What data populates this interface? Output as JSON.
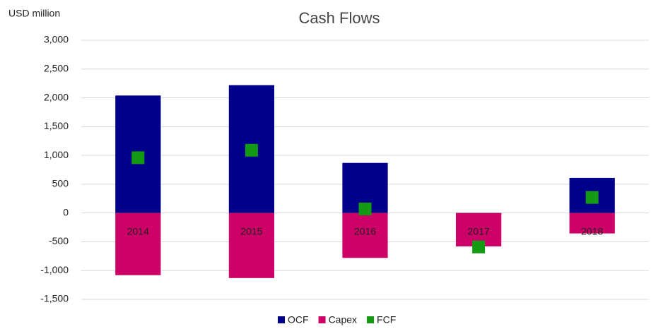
{
  "chart_data": {
    "type": "bar",
    "title": "Cash Flows",
    "y_label": "USD million",
    "categories": [
      "2014",
      "2015",
      "2016",
      "2017",
      "2018"
    ],
    "series": [
      {
        "name": "OCF",
        "color": "#00008b",
        "values": [
          2040,
          2220,
          870,
          -20,
          610
        ]
      },
      {
        "name": "Capex",
        "color": "#cc0066",
        "values": [
          -1080,
          -1130,
          -780,
          -580,
          -355
        ]
      },
      {
        "name": "FCF",
        "color": "#139b13",
        "type": "scatter",
        "values": [
          960,
          1090,
          70,
          -590,
          270
        ]
      }
    ],
    "ylim": [
      -1500,
      3000
    ],
    "yticks": [
      {
        "value": -1500,
        "label": "-1,500"
      },
      {
        "value": -1000,
        "label": "-1,000"
      },
      -500,
      0,
      500,
      {
        "value": 1000,
        "label": "1,000"
      },
      {
        "value": 1500,
        "label": "1,500"
      },
      {
        "value": 2000,
        "label": "2,000"
      },
      {
        "value": 2500,
        "label": "2,500"
      },
      {
        "value": 3000,
        "label": "3,000"
      }
    ],
    "grid": true,
    "legend": "bottom"
  }
}
